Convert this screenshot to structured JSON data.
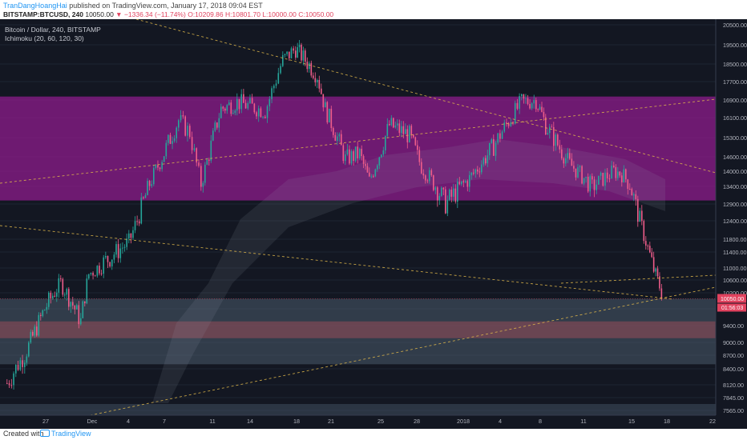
{
  "header": {
    "author": "TranDangHoangHai",
    "published_text": "published on TradingView.com, January 17, 2018 09:04 EST",
    "symbol": "BITSTAMP:BTCUSD, 240",
    "last": "10050.00",
    "change": "▼ −1336.34 (−11.74%)",
    "ohlc": "O:10209.86 H:10801.70 L:10000.00 C:10050.00"
  },
  "legend": {
    "title": "Bitcoin / Dollar, 240, BITSTAMP",
    "indicator": "Ichimoku (20, 60, 120, 30)"
  },
  "footer": {
    "created": "Created with",
    "brand": "TradingView"
  },
  "colors": {
    "up": "#26a69a",
    "down": "#ef5d8a",
    "purple_zone": "#8e1c8c",
    "steel_zone": "#4a5b6c",
    "red_zone": "#8f4b58",
    "trendline": "#e0b84a",
    "price_label": "#e0425e"
  },
  "chart_data": {
    "type": "candlestick",
    "title": "Bitcoin / Dollar, 240, BITSTAMP",
    "price_axis_ticks": [
      "20500.00",
      "19500.00",
      "18500.00",
      "17700.00",
      "16900.00",
      "16100.00",
      "15300.00",
      "14600.00",
      "14000.00",
      "13400.00",
      "12900.00",
      "12400.00",
      "11800.00",
      "11400.00",
      "11000.00",
      "10600.00",
      "10200.00",
      "9800.00",
      "9400.00",
      "9000.00",
      "8700.00",
      "8400.00",
      "8120.00",
      "7845.00",
      "7565.00"
    ],
    "time_axis_ticks": [
      "27",
      "Dec",
      "4",
      "7",
      "11",
      "14",
      "18",
      "21",
      "25",
      "28",
      "2018",
      "4",
      "8",
      "11",
      "15",
      "18",
      "22"
    ],
    "price_label": "10050.00",
    "countdown_label": "01:56:03",
    "ohlc_last": {
      "open": 10209.86,
      "high": 10801.7,
      "low": 10000.0,
      "close": 10050.0
    },
    "zones": [
      {
        "name": "resistance-zone",
        "from": 13000,
        "to": 17050
      },
      {
        "name": "support-zone",
        "from": 8500,
        "to": 10050
      },
      {
        "name": "inner-support-zone",
        "from": 9100,
        "to": 9500
      }
    ],
    "price_path": [
      {
        "t": "Nov 24",
        "p": 8150
      },
      {
        "t": "Nov 26",
        "p": 8700
      },
      {
        "t": "Nov 28",
        "p": 9800
      },
      {
        "t": "Nov 29",
        "p": 10500
      },
      {
        "t": "Nov 30",
        "p": 9500
      },
      {
        "t": "Dec 2",
        "p": 10800
      },
      {
        "t": "Dec 5",
        "p": 11700
      },
      {
        "t": "Dec 7",
        "p": 16000
      },
      {
        "t": "Dec 8",
        "p": 15500
      },
      {
        "t": "Dec 9",
        "p": 13500
      },
      {
        "t": "Dec 11",
        "p": 16500
      },
      {
        "t": "Dec 12",
        "p": 16800
      },
      {
        "t": "Dec 14",
        "p": 16400
      },
      {
        "t": "Dec 16",
        "p": 18700
      },
      {
        "t": "Dec 17",
        "p": 19300
      },
      {
        "t": "Dec 18",
        "p": 18700
      },
      {
        "t": "Dec 19",
        "p": 18000
      },
      {
        "t": "Dec 20",
        "p": 16500
      },
      {
        "t": "Dec 22",
        "p": 14500
      },
      {
        "t": "Dec 23",
        "p": 14700
      },
      {
        "t": "Dec 24",
        "p": 13600
      },
      {
        "t": "Dec 26",
        "p": 15800
      },
      {
        "t": "Dec 27",
        "p": 15400
      },
      {
        "t": "Dec 28",
        "p": 14200
      },
      {
        "t": "Dec 30",
        "p": 12900
      },
      {
        "t": "Jan 1",
        "p": 13700
      },
      {
        "t": "Jan 3",
        "p": 15000
      },
      {
        "t": "Jan 5",
        "p": 16800
      },
      {
        "t": "Jan 7",
        "p": 16900
      },
      {
        "t": "Jan 8",
        "p": 15800
      },
      {
        "t": "Jan 10",
        "p": 14300
      },
      {
        "t": "Jan 11",
        "p": 13400
      },
      {
        "t": "Jan 13",
        "p": 14000
      },
      {
        "t": "Jan 14",
        "p": 13900
      },
      {
        "t": "Jan 15",
        "p": 13500
      },
      {
        "t": "Jan 16",
        "p": 11300
      },
      {
        "t": "Jan 17",
        "p": 10050
      }
    ]
  }
}
